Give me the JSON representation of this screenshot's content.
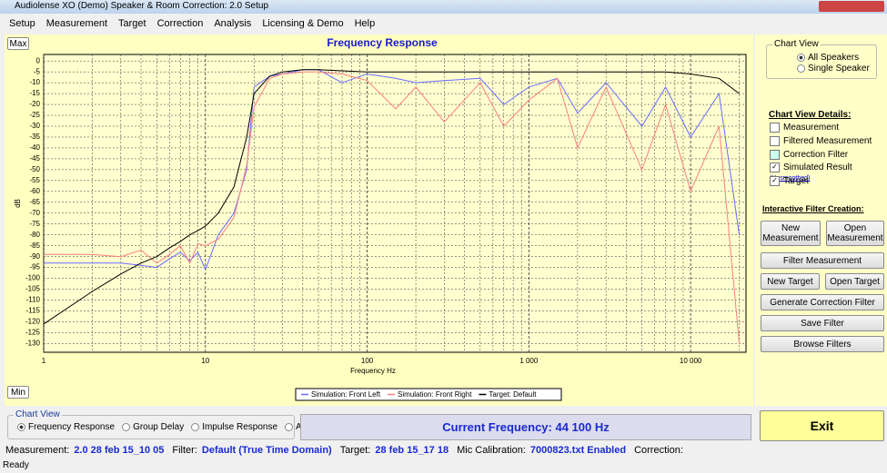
{
  "window": {
    "title": "Audiolense XO (Demo) Speaker & Room Correction: 2.0 Setup"
  },
  "menu": [
    "Setup",
    "Measurement",
    "Target",
    "Correction",
    "Analysis",
    "Licensing & Demo",
    "Help"
  ],
  "chart_buttons": {
    "max": "Max",
    "min": "Min"
  },
  "chart_data": {
    "type": "line",
    "title": "Frequency Response",
    "x_label": "Frequency Hz",
    "y_label": "dB",
    "log_x": true,
    "grid": true,
    "x": [
      1,
      2,
      3,
      4,
      5,
      6,
      7,
      8,
      9,
      10,
      12,
      15,
      18,
      20,
      25,
      30,
      40,
      50,
      70,
      100,
      150,
      200,
      300,
      500,
      700,
      1000,
      1500,
      2000,
      3000,
      5000,
      7000,
      10000,
      15000,
      20000
    ],
    "series": [
      {
        "name": "Simulation: Front Left",
        "color": "#6b6bff",
        "values": [
          -93,
          -93,
          -93,
          -94,
          -95,
          -91,
          -88,
          -92,
          -88,
          -96,
          -80,
          -70,
          -50,
          -12,
          -7,
          -6,
          -4,
          -4,
          -10,
          -6,
          -8,
          -10,
          -9,
          -8,
          -20,
          -12,
          -8,
          -24,
          -10,
          -30,
          -12,
          -35,
          -15,
          -80
        ]
      },
      {
        "name": "Simulation: Front Right",
        "color": "#ff8080",
        "values": [
          -89,
          -89,
          -90,
          -87,
          -93,
          -89,
          -85,
          -93,
          -84,
          -85,
          -82,
          -72,
          -48,
          -21,
          -8,
          -6,
          -5,
          -5,
          -6,
          -9,
          -22,
          -12,
          -28,
          -10,
          -30,
          -18,
          -8,
          -40,
          -12,
          -50,
          -20,
          -60,
          -30,
          -130
        ]
      },
      {
        "name": "Target: Default",
        "color": "#000000",
        "values": [
          -121,
          -106,
          -98,
          -93,
          -90,
          -86,
          -83,
          -80,
          -78,
          -76,
          -70,
          -58,
          -35,
          -15,
          -7,
          -5,
          -4,
          -4,
          -4.5,
          -5,
          -5,
          -5,
          -5,
          -5,
          -5,
          -5,
          -5,
          -5,
          -5,
          -5,
          -5,
          -6,
          -8,
          -15
        ]
      }
    ],
    "xlim": [
      1,
      22000
    ],
    "ylim": [
      -134,
      3
    ],
    "xticks": [
      1,
      10,
      100,
      {
        "value": 1000,
        "label": "1 000"
      },
      {
        "value": 10000,
        "label": "10 000"
      }
    ],
    "yticks": [
      0,
      -5,
      -10,
      -15,
      -20,
      -25,
      -30,
      -35,
      -40,
      -45,
      -50,
      -55,
      -60,
      -65,
      -70,
      -75,
      -80,
      -85,
      -90,
      -95,
      -100,
      -105,
      -110,
      -115,
      -120,
      -125,
      -130
    ]
  },
  "right_panel": {
    "chart_view": {
      "title": "Chart View",
      "options": [
        "All Speakers",
        "Single Speaker"
      ]
    },
    "details_title": "Chart View Details:",
    "checks": [
      "Measurement",
      "Filtered Measurement",
      "Correction Filter",
      "Simulated Result",
      "Target"
    ],
    "unsmoothed": "(Unsmoothed)",
    "filter_title": "Interactive Filter Creation:",
    "buttons": [
      "New Measurement",
      "Open Measurement",
      "Filter Measurement",
      "New Target",
      "Open Target",
      "Generate Correction Filter",
      "Save Filter",
      "Browse Filters"
    ]
  },
  "bottom": {
    "chart_view": {
      "title": "Chart View",
      "options": [
        "Frequency Response",
        "Group Delay",
        "Impulse Response",
        "All"
      ]
    },
    "current_frequency": "Current Frequency: 44 100 Hz",
    "exit": "Exit"
  },
  "status": {
    "items": [
      "Measurement:",
      "2.0 28 feb 15_10 05",
      "Filter:",
      "Default (True Time Domain)",
      "Target:",
      "28 feb 15_17 18",
      "Mic Calibration:",
      "7000823.txt Enabled",
      "Correction:"
    ],
    "ready": "Ready"
  }
}
